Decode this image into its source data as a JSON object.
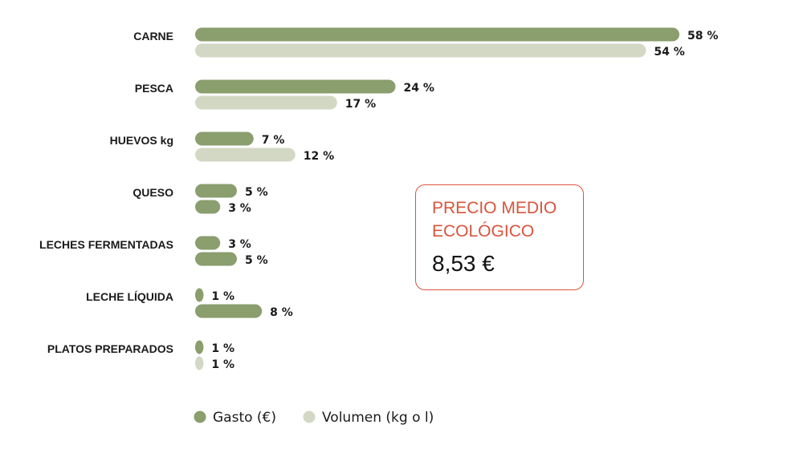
{
  "chart_data": {
    "type": "bar",
    "orientation": "horizontal",
    "categories": [
      "CARNE",
      "PESCA",
      "HUEVOS kg",
      "QUESO",
      "LECHES FERMENTADAS",
      "LECHE LÍQUIDA",
      "PLATOS PREPARADOS"
    ],
    "series": [
      {
        "name": "Gasto (€)",
        "color": "#8a9e6e",
        "values": [
          58,
          24,
          7,
          5,
          3,
          1,
          1
        ],
        "labels": [
          "58 %",
          "24 %",
          "7 %",
          "5 %",
          "3 %",
          "1 %",
          "1 %"
        ]
      },
      {
        "name": "Volumen (kg o l)",
        "color": "#d3d8c5",
        "values": [
          54,
          17,
          12,
          3,
          5,
          8,
          1
        ],
        "labels": [
          "54 %",
          "17 %",
          "12 %",
          "3 %",
          "5 %",
          "8 %",
          "1 %"
        ],
        "colors": [
          "#d3d8c5",
          "#d3d8c5",
          "#d3d8c5",
          "#8a9e6e",
          "#8a9e6e",
          "#8a9e6e",
          "#d3d8c5"
        ]
      }
    ],
    "xlim": [
      0,
      58
    ],
    "grid": false,
    "legend": "bottom"
  },
  "price_box": {
    "title": "PRECIO MEDIO ECOLÓGICO",
    "value": "8,53 €",
    "border_color": "#d9543c"
  }
}
